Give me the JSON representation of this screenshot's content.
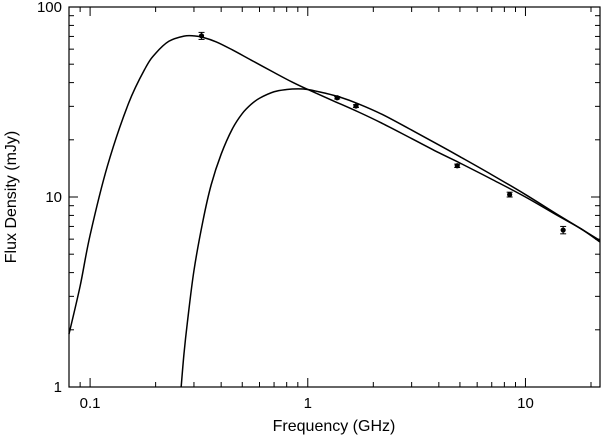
{
  "chart_data": {
    "type": "scatter",
    "title": "",
    "xlabel": "Frequency (GHz)",
    "ylabel": "Flux Density (mJy)",
    "xscale": "log",
    "yscale": "log",
    "xlim": [
      0.08,
      22
    ],
    "ylim": [
      1,
      100
    ],
    "grid": false,
    "legend": "none",
    "x_ticks": [
      {
        "value": 0.1,
        "label": "0.1"
      },
      {
        "value": 1,
        "label": "1"
      },
      {
        "value": 10,
        "label": "10"
      }
    ],
    "y_ticks": [
      {
        "value": 1,
        "label": "1"
      },
      {
        "value": 10,
        "label": "10"
      },
      {
        "value": 100,
        "label": "100"
      }
    ],
    "series": [
      {
        "kind": "points_with_errorbars",
        "x": [
          0.325,
          1.365,
          1.665,
          4.86,
          8.46,
          14.9
        ],
        "y": [
          70.5,
          33.3,
          30.1,
          14.6,
          10.3,
          6.7
        ],
        "yerr": [
          3.0,
          0.5,
          0.5,
          0.3,
          0.3,
          0.3
        ]
      },
      {
        "kind": "curve",
        "x": [
          0.08,
          0.09,
          0.1,
          0.12,
          0.15,
          0.18,
          0.2,
          0.23,
          0.27,
          0.3,
          0.33,
          0.38,
          0.45,
          0.55,
          0.7,
          0.85,
          1.0,
          1.3,
          1.7,
          2.2,
          3.0,
          4.0,
          5.0,
          7.0,
          10.0,
          14.0,
          18.0,
          22.0
        ],
        "y": [
          1.9,
          3.4,
          6.3,
          14.5,
          31,
          48,
          57,
          66,
          70.3,
          70.5,
          69.2,
          65.5,
          59.5,
          52.5,
          45.2,
          40.2,
          36.8,
          32.2,
          28.1,
          24.4,
          20.3,
          17.1,
          15.1,
          12.4,
          10.0,
          8.0,
          6.8,
          5.8
        ]
      },
      {
        "kind": "curve",
        "x": [
          0.262,
          0.27,
          0.28,
          0.3,
          0.33,
          0.36,
          0.4,
          0.45,
          0.5,
          0.55,
          0.6,
          0.7,
          0.8,
          0.9,
          1.0,
          1.2,
          1.4,
          1.7,
          2.2,
          3.0,
          4.0,
          5.0,
          7.0,
          10.0,
          14.0,
          18.0,
          22.0
        ],
        "y": [
          1.0,
          1.5,
          2.2,
          4.1,
          7.5,
          11.6,
          16.8,
          22.8,
          27.5,
          30.8,
          33.1,
          35.8,
          36.8,
          37.1,
          36.8,
          35.2,
          33.6,
          31.0,
          27.2,
          22.5,
          18.8,
          16.3,
          13.1,
          10.3,
          8.1,
          6.8,
          5.9
        ]
      }
    ]
  }
}
